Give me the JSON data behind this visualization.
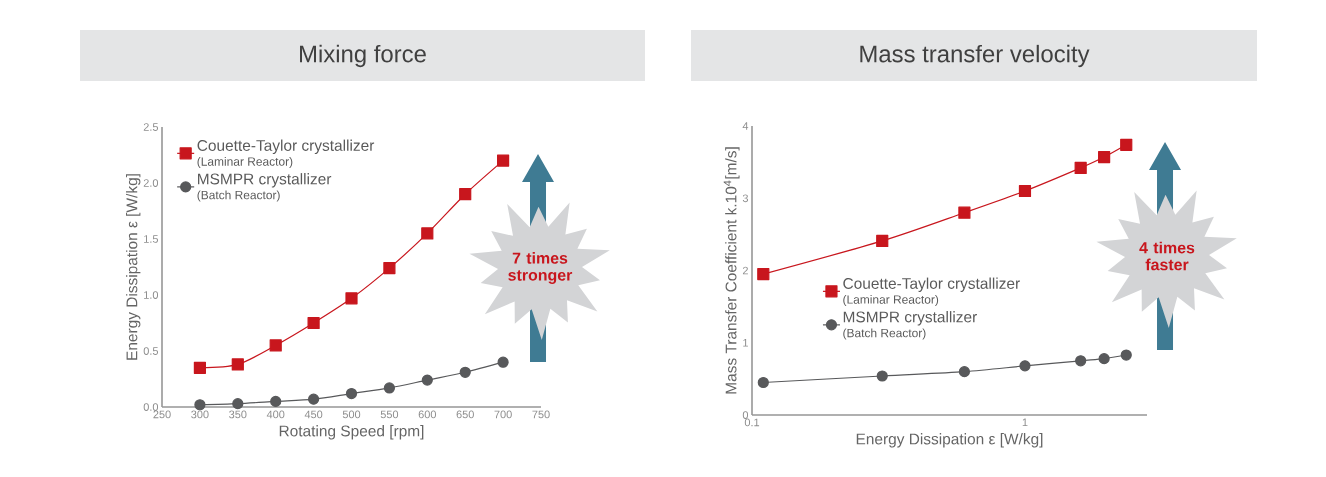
{
  "chart_data": [
    {
      "type": "line",
      "title": "Mixing force",
      "xlabel": "Rotating Speed [rpm]",
      "ylabel": "Energy Dissipation ε [W/kg]",
      "x": [
        300,
        350,
        400,
        450,
        500,
        550,
        600,
        650,
        700
      ],
      "series": [
        {
          "name": "Couette-Taylor crystallizer",
          "color": "#c8161d",
          "marker": "square",
          "values": [
            0.35,
            0.38,
            0.55,
            0.75,
            0.97,
            1.24,
            1.55,
            1.9,
            2.2
          ]
        },
        {
          "name": "MSMPR crystallizer",
          "color": "#58595b",
          "marker": "circle",
          "values": [
            0.02,
            0.03,
            0.05,
            0.07,
            0.12,
            0.17,
            0.24,
            0.31,
            0.4
          ]
        }
      ],
      "xlim": [
        250,
        750
      ],
      "xticks": [
        250,
        300,
        350,
        400,
        450,
        500,
        550,
        600,
        650,
        700,
        750
      ],
      "ylim": [
        0,
        2.5
      ],
      "yticks": [
        {
          "value": 0,
          "label": "0.0"
        },
        0.5,
        {
          "value": 1,
          "label": "1.0"
        },
        1.5,
        {
          "value": 2,
          "label": "2.0"
        },
        2.5
      ],
      "legend": "top left",
      "grid": false,
      "annotations": [
        "(Laminar Reactor)",
        "(Batch Reactor)",
        "7 times stronger"
      ]
    },
    {
      "type": "line",
      "title": "Mass transfer velocity",
      "xlabel": "Energy Dissipation ε [W/kg]",
      "ylabel": "Mass Transfer Coefficient k.10$^{4}$[m/s]",
      "x": [
        0.11,
        0.3,
        0.6,
        1.0,
        1.6,
        1.95,
        2.35
      ],
      "series": [
        {
          "name": "Couette-Taylor crystallizer",
          "color": "#c8161d",
          "marker": "square",
          "values": [
            1.95,
            2.41,
            2.8,
            3.1,
            3.42,
            3.57,
            3.74
          ]
        },
        {
          "name": "MSMPR crystallizer",
          "color": "#58595b",
          "marker": "circle",
          "values": [
            0.45,
            0.54,
            0.6,
            0.68,
            0.75,
            0.78,
            0.83
          ]
        }
      ],
      "log": "x",
      "xlim": [
        0.1,
        2.8
      ],
      "xticks": [
        0.1,
        1
      ],
      "ylim": [
        0,
        4
      ],
      "yticks": [
        0,
        1,
        2,
        3,
        4
      ],
      "legend": "left",
      "grid": false,
      "annotations": [
        "(Laminar Reactor)",
        "(Batch Reactor)",
        "4 times faster"
      ]
    }
  ]
}
